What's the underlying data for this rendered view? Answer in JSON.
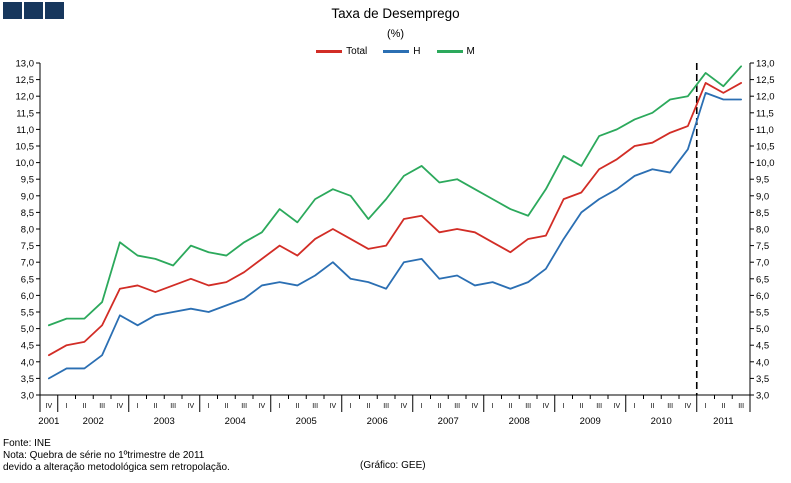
{
  "logo": {
    "color": "#17375d",
    "name": "three-squares-logo"
  },
  "chart_data": {
    "type": "line",
    "title": "Taxa de Desemprego",
    "subtitle": "(%)",
    "ylim": [
      3.0,
      13.0
    ],
    "y_step": 0.5,
    "grid": false,
    "legend_position": "top",
    "y_tick_labels": [
      "13,0",
      "12,5",
      "12,0",
      "11,5",
      "11,0",
      "10,5",
      "10,0",
      "9,5",
      "9,0",
      "8,5",
      "8,0",
      "7,5",
      "7,0",
      "6,5",
      "6,0",
      "5,5",
      "5,0",
      "4,5",
      "4,0",
      "3,5",
      "3,0"
    ],
    "years": [
      {
        "label": "2001",
        "count": 1
      },
      {
        "label": "2002",
        "count": 4
      },
      {
        "label": "2003",
        "count": 4
      },
      {
        "label": "2004",
        "count": 4
      },
      {
        "label": "2005",
        "count": 4
      },
      {
        "label": "2006",
        "count": 4
      },
      {
        "label": "2007",
        "count": 4
      },
      {
        "label": "2008",
        "count": 4
      },
      {
        "label": "2009",
        "count": 4
      },
      {
        "label": "2010",
        "count": 4
      },
      {
        "label": "2011",
        "count": 3
      }
    ],
    "quarter_labels": [
      "IV",
      "I",
      "II",
      "III",
      "IV",
      "I",
      "II",
      "III",
      "IV",
      "I",
      "II",
      "III",
      "IV",
      "I",
      "II",
      "III",
      "IV",
      "I",
      "II",
      "III",
      "IV",
      "I",
      "II",
      "III",
      "IV",
      "I",
      "II",
      "III",
      "IV",
      "I",
      "II",
      "III",
      "IV",
      "I",
      "II",
      "III",
      "IV",
      "I",
      "II",
      "III"
    ],
    "break_boundary_index": 37,
    "break_note": "dashed vertical line before 2011-I (series break)",
    "series": [
      {
        "name": "Total",
        "color": "#d22d26",
        "values": [
          4.2,
          4.5,
          4.6,
          5.1,
          6.2,
          6.3,
          6.1,
          6.3,
          6.5,
          6.3,
          6.4,
          6.7,
          7.1,
          7.5,
          7.2,
          7.7,
          8.0,
          7.7,
          7.4,
          7.5,
          8.3,
          8.4,
          7.9,
          8.0,
          7.9,
          7.6,
          7.3,
          7.7,
          7.8,
          8.9,
          9.1,
          9.8,
          10.1,
          10.5,
          10.6,
          10.9,
          11.1,
          12.4,
          12.1,
          12.4
        ]
      },
      {
        "name": "H",
        "color": "#2b6fb3",
        "values": [
          3.5,
          3.8,
          3.8,
          4.2,
          5.4,
          5.1,
          5.4,
          5.5,
          5.6,
          5.5,
          5.7,
          5.9,
          6.3,
          6.4,
          6.3,
          6.6,
          7.0,
          6.5,
          6.4,
          6.2,
          7.0,
          7.1,
          6.5,
          6.6,
          6.3,
          6.4,
          6.2,
          6.4,
          6.8,
          7.7,
          8.5,
          8.9,
          9.2,
          9.6,
          9.8,
          9.7,
          10.4,
          12.1,
          11.9,
          11.9
        ]
      },
      {
        "name": "M",
        "color": "#2ca95c",
        "values": [
          5.1,
          5.3,
          5.3,
          5.8,
          7.6,
          7.2,
          7.1,
          6.9,
          7.5,
          7.3,
          7.2,
          7.6,
          7.9,
          8.6,
          8.2,
          8.9,
          9.2,
          9.0,
          8.3,
          8.9,
          9.6,
          9.9,
          9.4,
          9.5,
          9.2,
          8.9,
          8.6,
          8.4,
          9.2,
          10.2,
          9.9,
          10.8,
          11.0,
          11.3,
          11.5,
          11.9,
          12.0,
          12.7,
          12.3,
          12.9
        ]
      }
    ]
  },
  "footer": {
    "source": "Fonte: INE",
    "note_line1": "Nota: Quebra de série no 1ºtrimestre de 2011",
    "note_line2": "devido a alteração metodológica sem retropolação.",
    "credit": "(Gráfico: GEE)"
  }
}
